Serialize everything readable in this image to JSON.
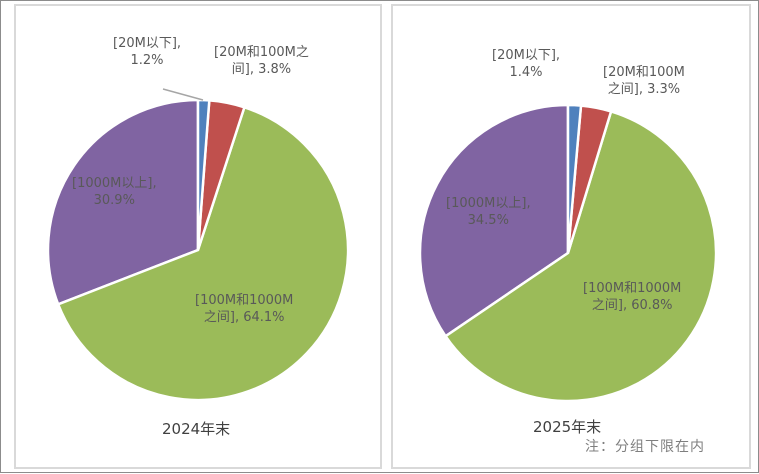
{
  "chart_data": [
    {
      "type": "pie",
      "title": "2024年末",
      "slices": [
        {
          "label": "[20M以下]",
          "value": 1.2,
          "text": "1.2%",
          "color": "#4f81bd"
        },
        {
          "label": "[20M和100M之间]",
          "value": 3.8,
          "text": "3.8%",
          "color": "#c0504d"
        },
        {
          "label": "[100M和1000M之间]",
          "value": 64.1,
          "text": "64.1%",
          "color": "#9bbb59"
        },
        {
          "label": "[1000M以上]",
          "value": 30.9,
          "text": "30.9%",
          "color": "#8064a2"
        }
      ]
    },
    {
      "type": "pie",
      "title": "2025年末",
      "slices": [
        {
          "label": "[20M以下]",
          "value": 1.4,
          "text": "1.4%",
          "color": "#4f81bd"
        },
        {
          "label": "[20M和100M之间]",
          "value": 3.3,
          "text": "3.3%",
          "color": "#c0504d"
        },
        {
          "label": "[100M和1000M之间]",
          "value": 60.8,
          "text": "60.8%",
          "color": "#9bbb59"
        },
        {
          "label": "[1000M以上]",
          "value": 34.5,
          "text": "34.5%",
          "color": "#8064a2"
        }
      ]
    }
  ],
  "labels": {
    "c0": [
      "[20M以下],",
      "1.2%",
      "[20M和100M之",
      "间], 3.8%",
      "[100M和1000M",
      "之间], 64.1%",
      "[1000M以上],",
      "30.9%"
    ],
    "c1": [
      "[20M以下],",
      "1.4%",
      "[20M和100M",
      "之间], 3.3%",
      "[100M和1000M",
      "之间], 60.8%",
      "[1000M以上],",
      "34.5%"
    ]
  },
  "note": "注：分组下限在内"
}
